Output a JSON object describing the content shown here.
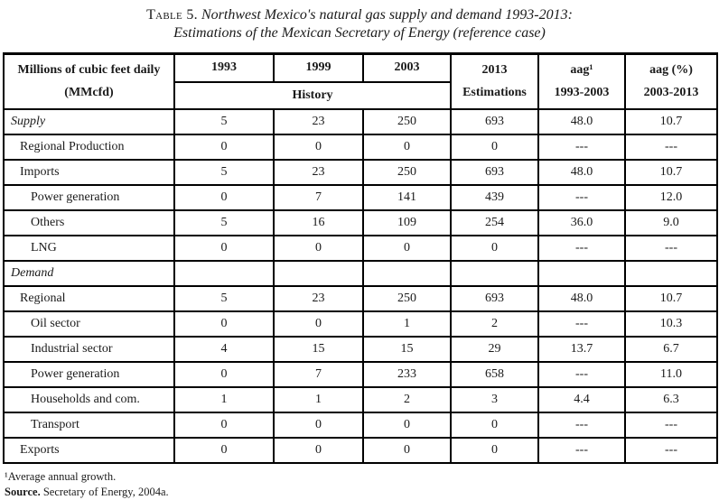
{
  "title": {
    "table_label": "Table 5.",
    "line1": "Northwest Mexico's natural gas supply and demand 1993-2013:",
    "line2": "Estimations of the Mexican Secretary of Energy (reference case)"
  },
  "table": {
    "header": {
      "col1": [
        "Millions of cubic feet daily",
        "(MMcfd)"
      ],
      "years": [
        "1993",
        "1999",
        "2003"
      ],
      "history": "History",
      "estimations": [
        "2013",
        "Estimations"
      ],
      "aag1": [
        "aag¹",
        "1993-2003"
      ],
      "aag2": [
        "aag (%)",
        "2003-2013"
      ]
    },
    "rows": [
      {
        "label": "Supply",
        "italic": true,
        "indent": 0,
        "values": [
          "5",
          "23",
          "250",
          "693",
          "48.0",
          "10.7"
        ]
      },
      {
        "label": "Regional Production",
        "italic": false,
        "indent": 1,
        "values": [
          "0",
          "0",
          "0",
          "0",
          "---",
          "---"
        ]
      },
      {
        "label": "Imports",
        "italic": false,
        "indent": 1,
        "values": [
          "5",
          "23",
          "250",
          "693",
          "48.0",
          "10.7"
        ]
      },
      {
        "label": "Power generation",
        "italic": false,
        "indent": 2,
        "values": [
          "0",
          "7",
          "141",
          "439",
          "---",
          "12.0"
        ]
      },
      {
        "label": "Others",
        "italic": false,
        "indent": 2,
        "values": [
          "5",
          "16",
          "109",
          "254",
          "36.0",
          "9.0"
        ]
      },
      {
        "label": "LNG",
        "italic": false,
        "indent": 2,
        "values": [
          "0",
          "0",
          "0",
          "0",
          "---",
          "---"
        ]
      },
      {
        "label": "Demand",
        "italic": true,
        "indent": 0,
        "values": [
          "",
          "",
          "",
          "",
          "",
          ""
        ]
      },
      {
        "label": "Regional",
        "italic": false,
        "indent": 1,
        "values": [
          "5",
          "23",
          "250",
          "693",
          "48.0",
          "10.7"
        ]
      },
      {
        "label": "Oil sector",
        "italic": false,
        "indent": 2,
        "values": [
          "0",
          "0",
          "1",
          "2",
          "---",
          "10.3"
        ]
      },
      {
        "label": "Industrial sector",
        "italic": false,
        "indent": 2,
        "values": [
          "4",
          "15",
          "15",
          "29",
          "13.7",
          "6.7"
        ]
      },
      {
        "label": "Power generation",
        "italic": false,
        "indent": 2,
        "values": [
          "0",
          "7",
          "233",
          "658",
          "---",
          "11.0"
        ]
      },
      {
        "label": "Households and com.",
        "italic": false,
        "indent": 2,
        "values": [
          "1",
          "1",
          "2",
          "3",
          "4.4",
          "6.3"
        ]
      },
      {
        "label": "Transport",
        "italic": false,
        "indent": 2,
        "values": [
          "0",
          "0",
          "0",
          "0",
          "---",
          "---"
        ]
      },
      {
        "label": "Exports",
        "italic": false,
        "indent": 1,
        "values": [
          "0",
          "0",
          "0",
          "0",
          "---",
          "---"
        ]
      }
    ]
  },
  "footnotes": {
    "note1": "¹Average annual growth.",
    "source_label": "Source.",
    "source_text": "Secretary of Energy, 2004a."
  },
  "colors": {
    "text": "#1a1a1a",
    "border": "#000000",
    "background": "#ffffff"
  }
}
